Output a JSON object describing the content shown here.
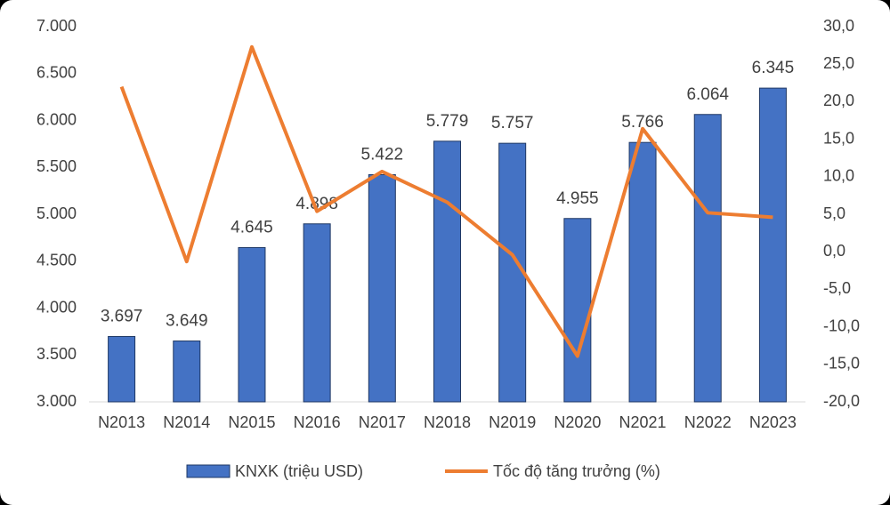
{
  "chart_data": {
    "type": "bar",
    "categories": [
      "N2013",
      "N2014",
      "N2015",
      "N2016",
      "N2017",
      "N2018",
      "N2019",
      "N2020",
      "N2021",
      "N2022",
      "N2023"
    ],
    "series": [
      {
        "name": "KNXK (triệu USD)",
        "type": "bar",
        "color": "#4472c4",
        "values": [
          3697,
          3649,
          4645,
          4898,
          5422,
          5779,
          5757,
          4955,
          5766,
          6064,
          6345
        ],
        "value_labels": [
          "3.697",
          "3.649",
          "4.645",
          "4.898",
          "5.422",
          "5.779",
          "5.757",
          "4.955",
          "5.766",
          "6.064",
          "6.345"
        ]
      },
      {
        "name": "Tốc độ tăng trưởng (%)",
        "type": "line",
        "axis": "y2",
        "color": "#ed7d31",
        "values": [
          22.0,
          -1.3,
          27.3,
          5.4,
          10.7,
          6.6,
          -0.4,
          -13.9,
          16.4,
          5.2,
          4.6
        ]
      }
    ],
    "ylim": [
      3000,
      7000
    ],
    "yticks": [
      {
        "value": 3000,
        "label": "3.000"
      },
      {
        "value": 3500,
        "label": "3.500"
      },
      {
        "value": 4000,
        "label": "4.000"
      },
      {
        "value": 4500,
        "label": "4.500"
      },
      {
        "value": 5000,
        "label": "5.000"
      },
      {
        "value": 5500,
        "label": "5.500"
      },
      {
        "value": 6000,
        "label": "6.000"
      },
      {
        "value": 6500,
        "label": "6.500"
      },
      {
        "value": 7000,
        "label": "7.000"
      }
    ],
    "y2lim": [
      -20,
      30
    ],
    "y2ticks": [
      {
        "value": -20,
        "label": "-20,0"
      },
      {
        "value": -15,
        "label": "-15,0"
      },
      {
        "value": -10,
        "label": "-10,0"
      },
      {
        "value": -5,
        "label": "-5,0"
      },
      {
        "value": 0,
        "label": "0,0"
      },
      {
        "value": 5,
        "label": "5,0"
      },
      {
        "value": 10,
        "label": "10,0"
      },
      {
        "value": 15,
        "label": "15,0"
      },
      {
        "value": 20,
        "label": "20,0"
      },
      {
        "value": 25,
        "label": "25,0"
      },
      {
        "value": 30,
        "label": "30,0"
      }
    ],
    "legend": "bottom"
  }
}
